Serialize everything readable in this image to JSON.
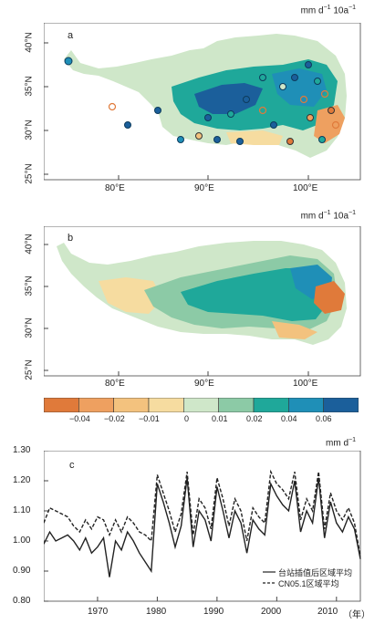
{
  "panel_a": {
    "letter": "a",
    "unit": "mm d",
    "unit_exp1": "−1",
    "unit_mid": " 10a",
    "unit_exp2": "−1",
    "y_ticks": [
      "40°N",
      "35°N",
      "30°N",
      "25°N"
    ],
    "x_ticks": [
      "80°E",
      "90°E",
      "100°E"
    ]
  },
  "panel_b": {
    "letter": "b",
    "unit": "mm d",
    "unit_exp1": "−1",
    "unit_mid": " 10a",
    "unit_exp2": "−1",
    "y_ticks": [
      "40°N",
      "35°N",
      "30°N",
      "25°N"
    ],
    "x_ticks": [
      "80°E",
      "90°E",
      "100°E"
    ]
  },
  "colorbar": {
    "labels": [
      "−0.04",
      "−0.02",
      "−0.01",
      "0",
      "0.01",
      "0.02",
      "0.04",
      "0.06"
    ],
    "colors": [
      "#e07a3a",
      "#eea060",
      "#f3c27e",
      "#f6dca0",
      "#cfe7c9",
      "#8ccaa6",
      "#1fa89a",
      "#1f8fb7",
      "#1b5f9b"
    ]
  },
  "chart_data": {
    "type": "line",
    "letter": "c",
    "unit": "mm d",
    "unit_exp": "−1",
    "x_suffix": "（年）",
    "xlim": [
      1961,
      2014
    ],
    "ylim": [
      0.8,
      1.3
    ],
    "y_ticks": [
      "1.30",
      "1.20",
      "1.10",
      "1.00",
      "0.90",
      "0.80"
    ],
    "x_ticks": [
      "1970",
      "1980",
      "1990",
      "2000",
      "2010"
    ],
    "x": [
      1961,
      1962,
      1963,
      1964,
      1965,
      1966,
      1967,
      1968,
      1969,
      1970,
      1971,
      1972,
      1973,
      1974,
      1975,
      1976,
      1977,
      1978,
      1979,
      1980,
      1981,
      1982,
      1983,
      1984,
      1985,
      1986,
      1987,
      1988,
      1989,
      1990,
      1991,
      1992,
      1993,
      1994,
      1995,
      1996,
      1997,
      1998,
      1999,
      2000,
      2001,
      2002,
      2003,
      2004,
      2005,
      2006,
      2007,
      2008,
      2009,
      2010,
      2011,
      2012,
      2013,
      2014
    ],
    "series": [
      {
        "name": "台站插值后区域平均",
        "style": "solid",
        "values": [
          0.99,
          1.03,
          1.0,
          1.01,
          1.02,
          1.0,
          0.97,
          1.01,
          0.96,
          0.98,
          1.01,
          0.88,
          1.0,
          0.97,
          1.03,
          1.0,
          0.96,
          0.93,
          0.9,
          1.19,
          1.13,
          1.06,
          0.98,
          1.05,
          1.21,
          0.98,
          1.1,
          1.07,
          1.0,
          1.18,
          1.1,
          1.01,
          1.1,
          1.06,
          0.96,
          1.07,
          1.04,
          1.02,
          1.19,
          1.15,
          1.12,
          1.1,
          1.2,
          1.03,
          1.1,
          1.06,
          1.21,
          1.01,
          1.13,
          1.06,
          1.03,
          1.08,
          1.04,
          0.94
        ]
      },
      {
        "name": "CN05.1区域平均",
        "style": "dashed",
        "values": [
          1.06,
          1.11,
          1.1,
          1.09,
          1.08,
          1.05,
          1.03,
          1.07,
          1.04,
          1.08,
          1.07,
          1.02,
          1.07,
          1.03,
          1.08,
          1.06,
          1.03,
          1.02,
          1.0,
          1.22,
          1.16,
          1.1,
          1.03,
          1.09,
          1.23,
          1.02,
          1.14,
          1.11,
          1.04,
          1.21,
          1.14,
          1.05,
          1.14,
          1.1,
          1.0,
          1.11,
          1.08,
          1.06,
          1.23,
          1.19,
          1.17,
          1.14,
          1.23,
          1.07,
          1.14,
          1.1,
          1.23,
          1.04,
          1.16,
          1.1,
          1.07,
          1.11,
          1.06,
          0.95
        ]
      }
    ]
  }
}
